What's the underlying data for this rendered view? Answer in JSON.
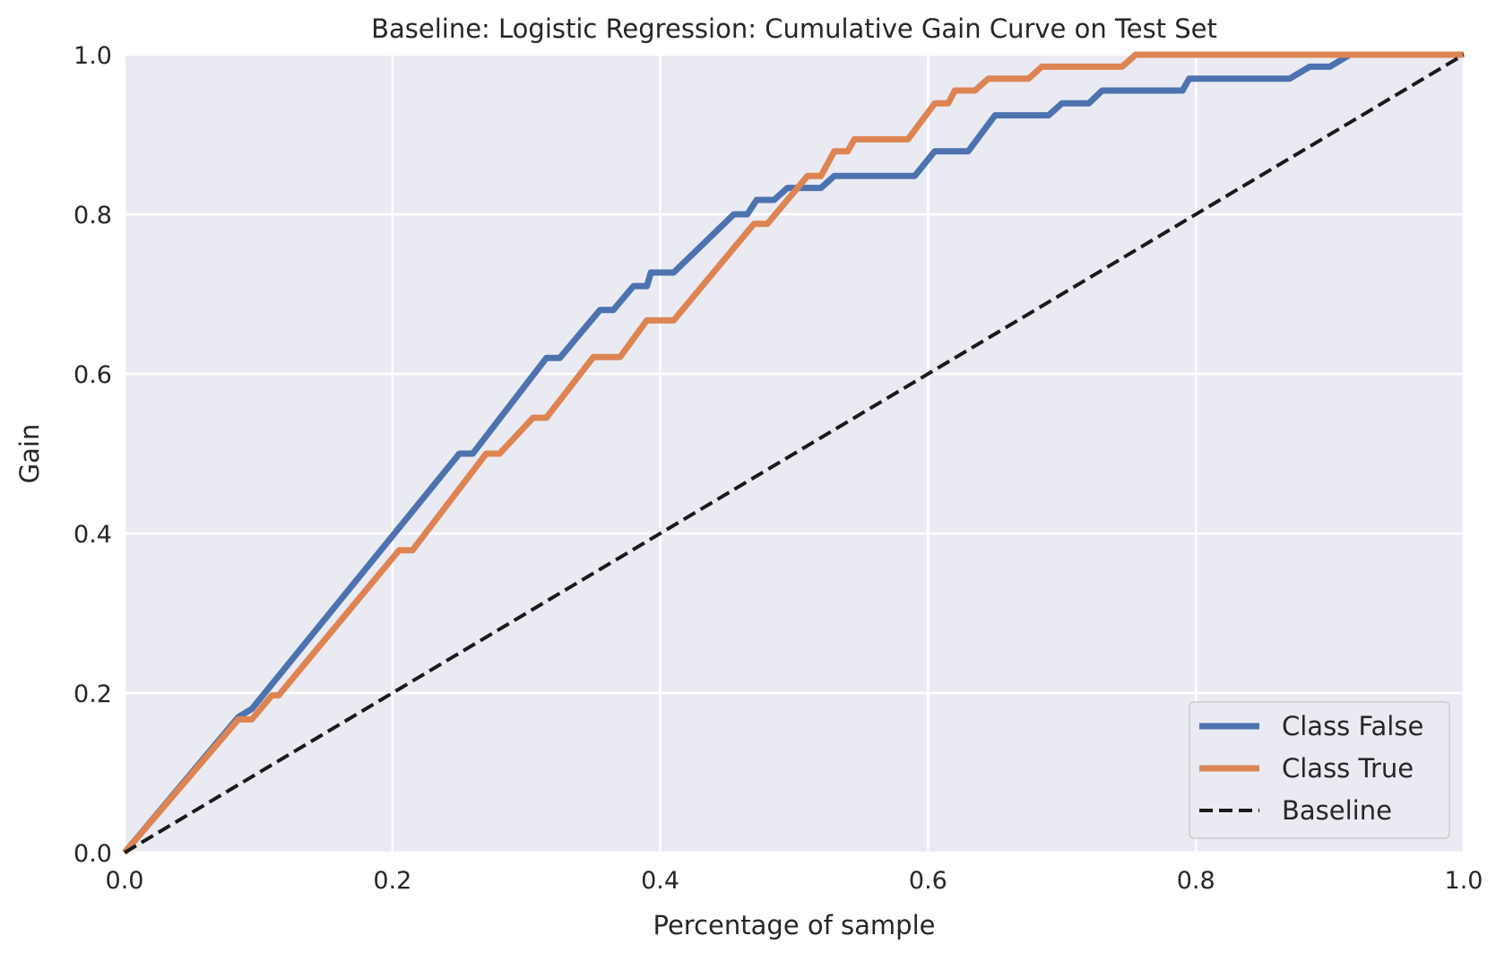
{
  "chart_data": {
    "type": "line",
    "title": "Baseline: Logistic Regression: Cumulative Gain Curve on Test Set",
    "xlabel": "Percentage of sample",
    "ylabel": "Gain",
    "xlim": [
      0.0,
      1.0
    ],
    "ylim": [
      0.0,
      1.0
    ],
    "xticks": [
      "0.0",
      "0.2",
      "0.4",
      "0.6",
      "0.8",
      "1.0"
    ],
    "yticks": [
      "0.0",
      "0.2",
      "0.4",
      "0.6",
      "0.8",
      "1.0"
    ],
    "grid": true,
    "background": "#eaeaf2",
    "legend_position": "lower-right",
    "series": [
      {
        "name": "Class False",
        "color": "#4c72b0",
        "style": "solid",
        "x": [
          0.0,
          0.085,
          0.095,
          0.25,
          0.26,
          0.315,
          0.325,
          0.355,
          0.365,
          0.38,
          0.39,
          0.393,
          0.41,
          0.455,
          0.465,
          0.472,
          0.485,
          0.495,
          0.52,
          0.53,
          0.59,
          0.605,
          0.63,
          0.65,
          0.69,
          0.7,
          0.72,
          0.73,
          0.79,
          0.795,
          0.87,
          0.885,
          0.9,
          0.915,
          1.0
        ],
        "y": [
          0.0,
          0.17,
          0.18,
          0.5,
          0.5,
          0.62,
          0.62,
          0.68,
          0.68,
          0.71,
          0.71,
          0.727,
          0.727,
          0.8,
          0.8,
          0.818,
          0.818,
          0.833,
          0.833,
          0.848,
          0.848,
          0.879,
          0.879,
          0.924,
          0.924,
          0.939,
          0.939,
          0.955,
          0.955,
          0.97,
          0.97,
          0.985,
          0.985,
          1.0,
          1.0
        ]
      },
      {
        "name": "Class True",
        "color": "#dd8452",
        "style": "solid",
        "x": [
          0.0,
          0.085,
          0.095,
          0.11,
          0.115,
          0.205,
          0.215,
          0.27,
          0.28,
          0.305,
          0.315,
          0.35,
          0.37,
          0.39,
          0.41,
          0.47,
          0.48,
          0.51,
          0.52,
          0.53,
          0.54,
          0.545,
          0.585,
          0.605,
          0.615,
          0.62,
          0.635,
          0.645,
          0.675,
          0.685,
          0.745,
          0.755,
          1.0
        ],
        "y": [
          0.0,
          0.167,
          0.167,
          0.197,
          0.197,
          0.379,
          0.379,
          0.5,
          0.5,
          0.545,
          0.545,
          0.621,
          0.621,
          0.667,
          0.667,
          0.788,
          0.788,
          0.848,
          0.848,
          0.879,
          0.879,
          0.894,
          0.894,
          0.939,
          0.939,
          0.955,
          0.955,
          0.97,
          0.97,
          0.985,
          0.985,
          1.0,
          1.0
        ]
      },
      {
        "name": "Baseline",
        "color": "#1a1a1a",
        "style": "dashed",
        "x": [
          0.0,
          1.0
        ],
        "y": [
          0.0,
          1.0
        ]
      }
    ]
  }
}
